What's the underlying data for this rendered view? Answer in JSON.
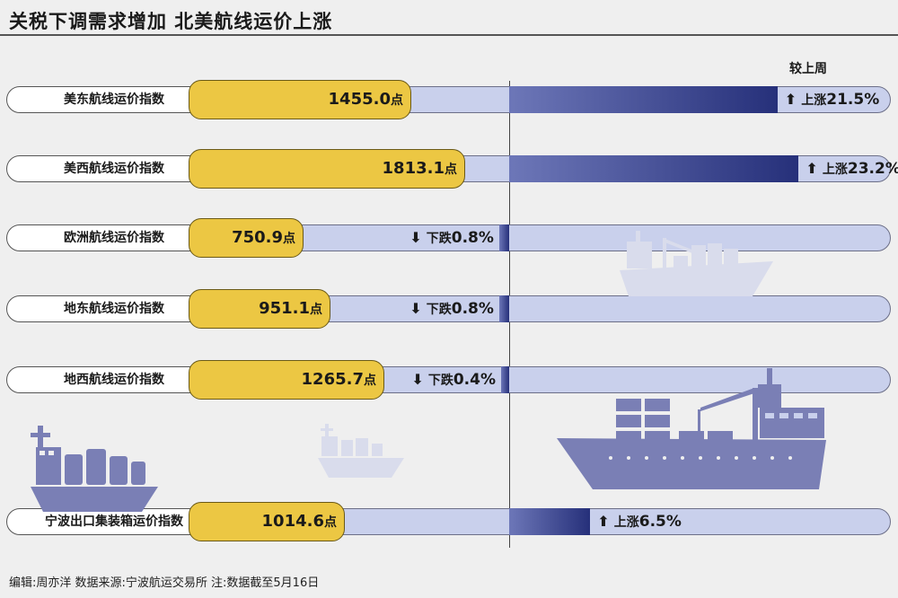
{
  "header": {
    "title": "关税下调需求增加 北美航线运价上涨"
  },
  "chart_data": {
    "type": "bar",
    "title": "关税下调需求增加 北美航线运价上涨",
    "compare_label": "较上周",
    "unit": "点",
    "series": [
      {
        "name": "美东航线运价指数",
        "value": 1455.0,
        "value_text": "1455.0",
        "direction": "up",
        "direction_label": "上涨",
        "change_pct": 21.5,
        "change_text": "21.5%"
      },
      {
        "name": "美西航线运价指数",
        "value": 1813.1,
        "value_text": "1813.1",
        "direction": "up",
        "direction_label": "上涨",
        "change_pct": 23.2,
        "change_text": "23.2%"
      },
      {
        "name": "欧洲航线运价指数",
        "value": 750.9,
        "value_text": "750.9",
        "direction": "down",
        "direction_label": "下跌",
        "change_pct": -0.8,
        "change_text": "0.8%"
      },
      {
        "name": "地东航线运价指数",
        "value": 951.1,
        "value_text": "951.1",
        "direction": "down",
        "direction_label": "下跌",
        "change_pct": -0.8,
        "change_text": "0.8%"
      },
      {
        "name": "地西航线运价指数",
        "value": 1265.7,
        "value_text": "1265.7",
        "direction": "down",
        "direction_label": "下跌",
        "change_pct": -0.4,
        "change_text": "0.4%"
      },
      {
        "name": "宁波出口集装箱运价指数",
        "value": 1014.6,
        "value_text": "1014.6",
        "direction": "up",
        "direction_label": "上涨",
        "change_pct": 6.5,
        "change_text": "6.5%"
      }
    ]
  },
  "footer": {
    "text": "编辑:周亦洋  数据来源:宁波航运交易所  注:数据截至5月16日"
  },
  "colors": {
    "value_bar": "#ecc743",
    "track": "#c9d0ec",
    "change_bar_start": "#6d77b8",
    "change_bar_end": "#26307a",
    "ship": "#7a7fb5",
    "ship_light": "#d9dcec"
  }
}
